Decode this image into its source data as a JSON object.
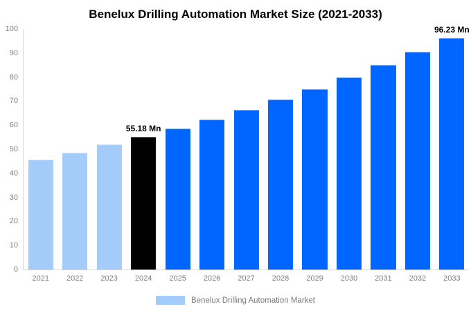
{
  "title": "Benelux Drilling Automation Market Size (2021-2033)",
  "colors": {
    "light_blue": "#a3ccfa",
    "blue": "#0066ff",
    "highlight_black": "#000000",
    "axis_line": "#d6d6d6",
    "tick_text": "#808080",
    "title_text": "#000000",
    "background": "#ffffff"
  },
  "legend": {
    "label": "Benelux Drilling Automation Market",
    "swatch_color": "#a3ccfa",
    "position": "bottom"
  },
  "chart_data": {
    "type": "bar",
    "title": "Benelux Drilling Automation Market Size (2021-2033)",
    "categories": [
      "2021",
      "2022",
      "2023",
      "2024",
      "2025",
      "2026",
      "2027",
      "2028",
      "2029",
      "2030",
      "2031",
      "2032",
      "2033"
    ],
    "values": [
      45.8,
      48.7,
      51.9,
      55.18,
      58.7,
      62.4,
      66.4,
      70.6,
      75.1,
      79.9,
      85.0,
      90.4,
      96.23
    ],
    "bar_colors": [
      "#a3ccfa",
      "#a3ccfa",
      "#a3ccfa",
      "#000000",
      "#0066ff",
      "#0066ff",
      "#0066ff",
      "#0066ff",
      "#0066ff",
      "#0066ff",
      "#0066ff",
      "#0066ff",
      "#0066ff"
    ],
    "annotations": [
      {
        "category": "2024",
        "label": "55.18 Mn"
      },
      {
        "category": "2033",
        "label": "96.23 Mn"
      }
    ],
    "xlabel": "",
    "ylabel": "",
    "ylim": [
      0,
      100
    ],
    "yticks": [
      0,
      10,
      20,
      30,
      40,
      50,
      60,
      70,
      80,
      90,
      100
    ],
    "grid": false,
    "legend_entries": [
      "Benelux Drilling Automation Market"
    ],
    "legend_position": "bottom"
  }
}
